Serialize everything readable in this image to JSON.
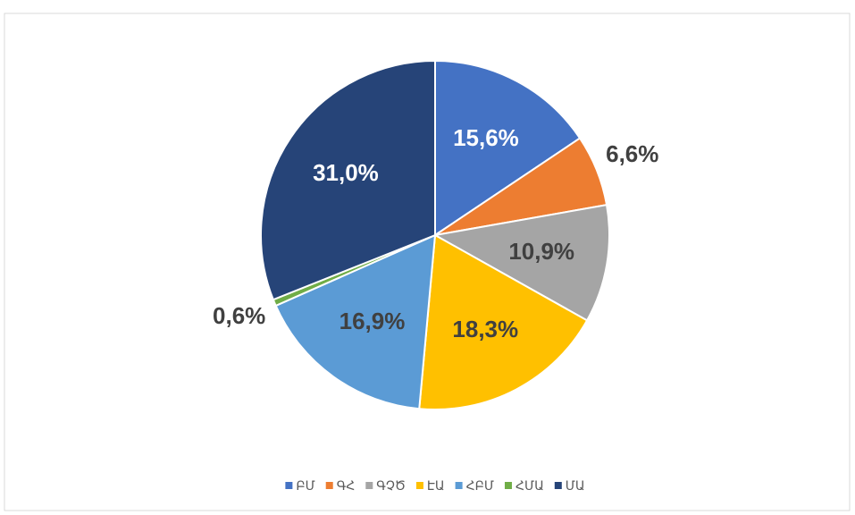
{
  "chart_data": {
    "type": "pie",
    "categories": [
      "ԲՄ",
      "ԳՀ",
      "ԳՉԾ",
      "ԷԱ",
      "ՀԲՄ",
      "ՀՄԱ",
      "ՄԱ"
    ],
    "values": [
      15.6,
      6.6,
      10.9,
      18.3,
      16.9,
      0.6,
      31.0
    ],
    "value_labels": [
      "15,6%",
      "6,6%",
      "10,9%",
      "18,3%",
      "16,9%",
      "0,6%",
      "31,0%"
    ],
    "colors": [
      "#4472c4",
      "#ed7d31",
      "#a5a5a5",
      "#ffc000",
      "#5b9bd5",
      "#70ad47",
      "#264478"
    ],
    "legend": "bottom"
  }
}
